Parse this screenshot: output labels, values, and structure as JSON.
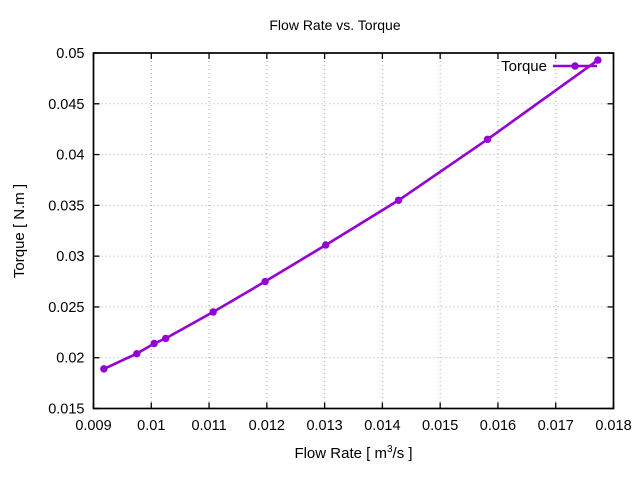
{
  "window": {
    "background": "#ffffff"
  },
  "chart_data": {
    "type": "line",
    "title": "Flow Rate vs. Torque",
    "xlabel": "Flow Rate [ m³/s ]",
    "xlabel_parts": {
      "pre": "Flow Rate [ m",
      "sup": "3",
      "post": "/s ]"
    },
    "ylabel": "Torque [ N.m ]",
    "xlim": [
      0.009,
      0.018
    ],
    "ylim": [
      0.015,
      0.05
    ],
    "grid": "dotted-major",
    "legend_position": "top-right-inside",
    "xticks": {
      "values": [
        0.009,
        0.01,
        0.011,
        0.012,
        0.013,
        0.014,
        0.015,
        0.016,
        0.017,
        0.018
      ],
      "labels": [
        "0.009",
        "0.01",
        "0.011",
        "0.012",
        "0.013",
        "0.014",
        "0.015",
        "0.016",
        "0.017",
        "0.018"
      ]
    },
    "yticks": {
      "values": [
        0.015,
        0.02,
        0.025,
        0.03,
        0.035,
        0.04,
        0.045,
        0.05
      ],
      "labels": [
        "0.015",
        "0.02",
        "0.025",
        "0.03",
        "0.035",
        "0.04",
        "0.045",
        "0.05"
      ]
    },
    "series": [
      {
        "name": "Torque",
        "style": "linespoints",
        "marker": "filled-circle",
        "color": "#9400D3",
        "x": [
          0.00918,
          0.00975,
          0.01005,
          0.01025,
          0.01107,
          0.01197,
          0.01302,
          0.01428,
          0.01582,
          0.01773
        ],
        "y": [
          0.0189,
          0.0204,
          0.0214,
          0.0219,
          0.0245,
          0.0275,
          0.0311,
          0.0355,
          0.0415,
          0.0493
        ]
      }
    ],
    "colors": {
      "series": "#9400D3",
      "grid": "#aaaaaa",
      "border": "#000000",
      "text": "#000000",
      "background": "#ffffff"
    }
  }
}
